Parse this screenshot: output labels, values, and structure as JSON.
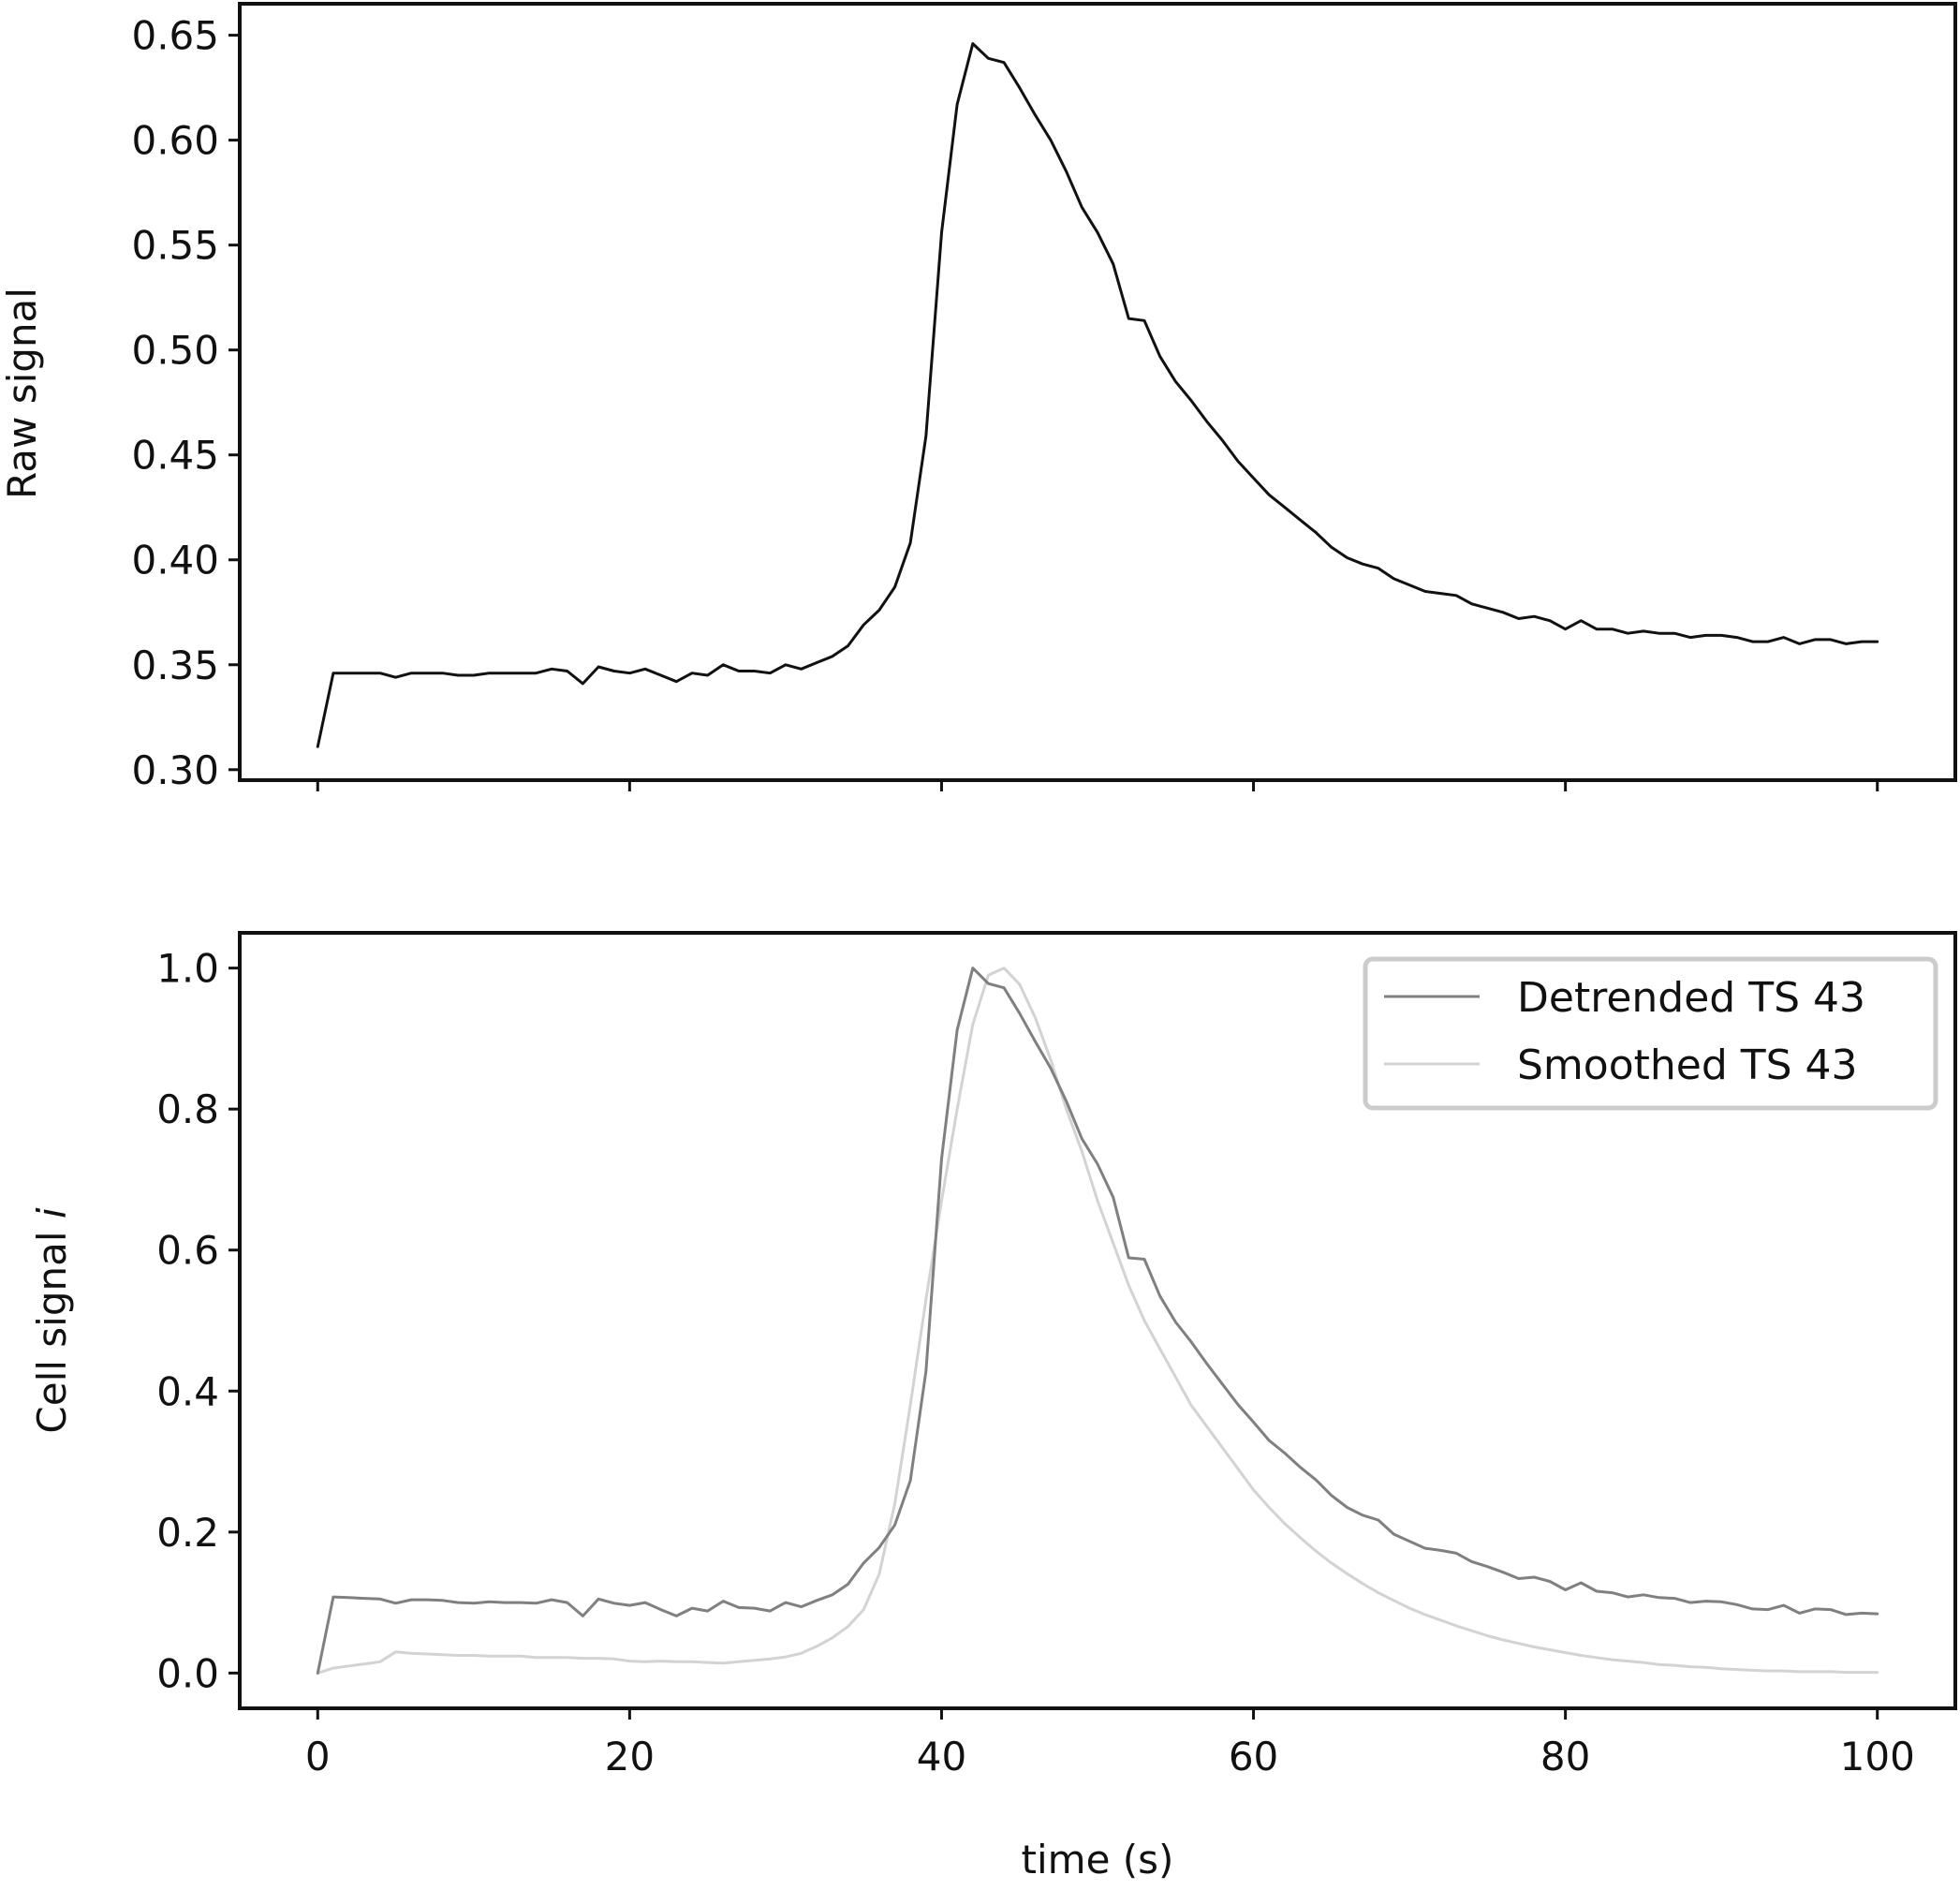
{
  "chart_data": [
    {
      "type": "line",
      "title": "",
      "xlabel": "",
      "ylabel": "Raw signal",
      "xlim": [
        -5,
        105
      ],
      "ylim": [
        0.295,
        0.665
      ],
      "xticks": [
        0,
        20,
        40,
        60,
        80,
        100
      ],
      "show_xtick_labels": false,
      "yticks": [
        0.3,
        0.35,
        0.4,
        0.45,
        0.5,
        0.55,
        0.6,
        0.65
      ],
      "ytick_labels": [
        "0.30",
        "0.35",
        "0.40",
        "0.45",
        "0.50",
        "0.55",
        "0.60",
        "0.65"
      ],
      "grid": false,
      "x": [
        0,
        1,
        2,
        3,
        4,
        5,
        6,
        7,
        8,
        9,
        10,
        11,
        12,
        13,
        14,
        15,
        16,
        17,
        18,
        19,
        20,
        21,
        22,
        23,
        24,
        25,
        26,
        27,
        28,
        29,
        30,
        31,
        32,
        33,
        34,
        35,
        36,
        37,
        38,
        39,
        40,
        41,
        42,
        43,
        44,
        45,
        46,
        47,
        48,
        49,
        50,
        51,
        52,
        53,
        54,
        55,
        56,
        57,
        58,
        59,
        60,
        61,
        62,
        63,
        64,
        65,
        66,
        67,
        68,
        69,
        70,
        71,
        72,
        73,
        74,
        75,
        76,
        77,
        78,
        79,
        80,
        81,
        82,
        83,
        84,
        85,
        86,
        87,
        88,
        89,
        90,
        91,
        92,
        93,
        94,
        95,
        96,
        97,
        98,
        99,
        100
      ],
      "series": [
        {
          "color": "#111111",
          "values": [
            0.311,
            0.346,
            0.346,
            0.346,
            0.346,
            0.344,
            0.346,
            0.346,
            0.346,
            0.345,
            0.345,
            0.346,
            0.346,
            0.346,
            0.346,
            0.348,
            0.347,
            0.341,
            0.349,
            0.347,
            0.346,
            0.348,
            0.345,
            0.342,
            0.346,
            0.345,
            0.35,
            0.347,
            0.347,
            0.346,
            0.35,
            0.348,
            0.351,
            0.354,
            0.359,
            0.369,
            0.376,
            0.387,
            0.408,
            0.459,
            0.556,
            0.617,
            0.646,
            0.639,
            0.637,
            0.625,
            0.612,
            0.6,
            0.585,
            0.568,
            0.556,
            0.541,
            0.515,
            0.514,
            0.497,
            0.485,
            0.476,
            0.466,
            0.457,
            0.447,
            0.439,
            0.431,
            0.425,
            0.419,
            0.413,
            0.406,
            0.401,
            0.398,
            0.396,
            0.391,
            0.388,
            0.385,
            0.384,
            0.383,
            0.379,
            0.377,
            0.375,
            0.372,
            0.373,
            0.371,
            0.367,
            0.371,
            0.367,
            0.367,
            0.365,
            0.366,
            0.365,
            0.365,
            0.363,
            0.364,
            0.364,
            0.363,
            0.361,
            0.361,
            0.363,
            0.36,
            0.362,
            0.362,
            0.36,
            0.361,
            0.361
          ]
        }
      ]
    },
    {
      "type": "line",
      "title": "",
      "xlabel": "time (s)",
      "ylabel_text": "Cell signal ",
      "ylabel_italic": "i",
      "xlim": [
        -5,
        105
      ],
      "ylim": [
        -0.05,
        1.05
      ],
      "xticks": [
        0,
        20,
        40,
        60,
        80,
        100
      ],
      "xtick_labels": [
        "0",
        "20",
        "40",
        "60",
        "80",
        "100"
      ],
      "yticks": [
        0,
        0.2,
        0.4,
        0.6,
        0.8,
        1.0
      ],
      "ytick_labels": [
        "0.0",
        "0.2",
        "0.4",
        "0.6",
        "0.8",
        "1.0"
      ],
      "grid": false,
      "legend": "top-right",
      "x": [
        0,
        1,
        2,
        3,
        4,
        5,
        6,
        7,
        8,
        9,
        10,
        11,
        12,
        13,
        14,
        15,
        16,
        17,
        18,
        19,
        20,
        21,
        22,
        23,
        24,
        25,
        26,
        27,
        28,
        29,
        30,
        31,
        32,
        33,
        34,
        35,
        36,
        37,
        38,
        39,
        40,
        41,
        42,
        43,
        44,
        45,
        46,
        47,
        48,
        49,
        50,
        51,
        52,
        53,
        54,
        55,
        56,
        57,
        58,
        59,
        60,
        61,
        62,
        63,
        64,
        65,
        66,
        67,
        68,
        69,
        70,
        71,
        72,
        73,
        74,
        75,
        76,
        77,
        78,
        79,
        80,
        81,
        82,
        83,
        84,
        85,
        86,
        87,
        88,
        89,
        90,
        91,
        92,
        93,
        94,
        95,
        96,
        97,
        98,
        99,
        100
      ],
      "series": [
        {
          "name": "Detrended TS 43",
          "color": "#808080",
          "values": [
            0.0,
            0.108,
            0.107,
            0.106,
            0.105,
            0.099,
            0.104,
            0.104,
            0.103,
            0.1,
            0.099,
            0.101,
            0.1,
            0.1,
            0.099,
            0.104,
            0.1,
            0.081,
            0.105,
            0.099,
            0.096,
            0.1,
            0.09,
            0.081,
            0.092,
            0.088,
            0.102,
            0.093,
            0.092,
            0.088,
            0.1,
            0.094,
            0.103,
            0.111,
            0.126,
            0.156,
            0.178,
            0.21,
            0.273,
            0.428,
            0.73,
            0.912,
            1.0,
            0.978,
            0.972,
            0.936,
            0.896,
            0.858,
            0.811,
            0.758,
            0.722,
            0.675,
            0.589,
            0.587,
            0.535,
            0.498,
            0.47,
            0.439,
            0.41,
            0.381,
            0.356,
            0.33,
            0.312,
            0.292,
            0.274,
            0.252,
            0.235,
            0.224,
            0.217,
            0.197,
            0.187,
            0.177,
            0.174,
            0.17,
            0.158,
            0.151,
            0.143,
            0.134,
            0.136,
            0.13,
            0.118,
            0.128,
            0.116,
            0.114,
            0.108,
            0.111,
            0.107,
            0.106,
            0.1,
            0.102,
            0.101,
            0.097,
            0.091,
            0.09,
            0.096,
            0.085,
            0.091,
            0.09,
            0.083,
            0.085,
            0.084
          ]
        },
        {
          "name": "Smoothed TS 43",
          "color": "#d3d3d3",
          "values": [
            0.0,
            0.007,
            0.01,
            0.013,
            0.016,
            0.03,
            0.028,
            0.027,
            0.026,
            0.025,
            0.025,
            0.024,
            0.024,
            0.024,
            0.022,
            0.022,
            0.022,
            0.021,
            0.021,
            0.02,
            0.017,
            0.016,
            0.017,
            0.016,
            0.016,
            0.015,
            0.014,
            0.016,
            0.018,
            0.02,
            0.023,
            0.028,
            0.038,
            0.05,
            0.066,
            0.09,
            0.14,
            0.24,
            0.38,
            0.53,
            0.67,
            0.8,
            0.92,
            0.99,
            1.0,
            0.977,
            0.93,
            0.87,
            0.8,
            0.74,
            0.67,
            0.61,
            0.55,
            0.5,
            0.46,
            0.42,
            0.38,
            0.35,
            0.32,
            0.29,
            0.26,
            0.235,
            0.212,
            0.192,
            0.173,
            0.156,
            0.141,
            0.127,
            0.114,
            0.103,
            0.092,
            0.083,
            0.075,
            0.067,
            0.06,
            0.053,
            0.047,
            0.042,
            0.037,
            0.033,
            0.029,
            0.025,
            0.022,
            0.019,
            0.017,
            0.015,
            0.012,
            0.011,
            0.009,
            0.008,
            0.006,
            0.005,
            0.004,
            0.003,
            0.003,
            0.002,
            0.002,
            0.002,
            0.001,
            0.001,
            0.001
          ]
        }
      ]
    }
  ]
}
